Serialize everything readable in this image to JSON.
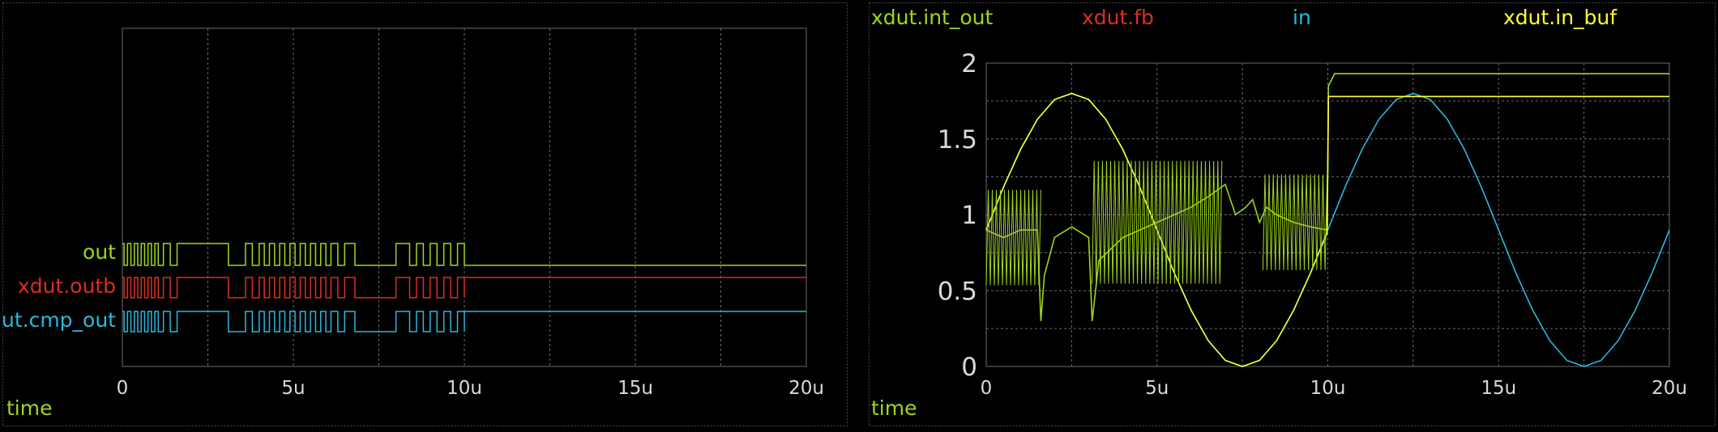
{
  "colors": {
    "background": "#000000",
    "border": "#4a4a4a",
    "grid": "#6b6b6b",
    "tick_label": "#d9d9d9",
    "green": "#9fd61b",
    "red": "#d9301e",
    "cyan": "#2ab8dc",
    "yellow": "#ffff30"
  },
  "chart_data": [
    {
      "type": "line",
      "subtype": "digital",
      "xlabel": "time",
      "xlim": [
        0,
        20
      ],
      "x_unit": "u",
      "x_ticks": [
        "0",
        "5u",
        "10u",
        "15u",
        "20u"
      ],
      "grid": true,
      "traces": [
        {
          "name": "out",
          "color": "#9fd61b",
          "toggle_times": [
            0.05,
            0.15,
            0.25,
            0.35,
            0.45,
            0.55,
            0.65,
            0.75,
            0.85,
            0.95,
            1.05,
            1.2,
            1.4,
            1.6,
            3.1,
            3.6,
            3.8,
            4.0,
            4.15,
            4.3,
            4.45,
            4.6,
            4.75,
            4.9,
            5.05,
            5.2,
            5.35,
            5.5,
            5.65,
            5.8,
            5.95,
            6.1,
            6.3,
            6.5,
            6.8,
            8.0,
            8.4,
            8.6,
            8.8,
            9.0,
            9.2,
            9.4,
            9.6,
            9.8,
            10.0
          ]
        },
        {
          "name": "xdut.outb",
          "color": "#d9301e",
          "toggle_times": [
            0.05,
            0.15,
            0.25,
            0.35,
            0.45,
            0.55,
            0.65,
            0.75,
            0.85,
            0.95,
            1.05,
            1.2,
            1.4,
            1.6,
            3.1,
            3.6,
            3.8,
            4.0,
            4.15,
            4.3,
            4.45,
            4.6,
            4.75,
            4.9,
            5.05,
            5.2,
            5.35,
            5.5,
            5.65,
            5.8,
            5.95,
            6.1,
            6.3,
            6.5,
            6.8,
            8.0,
            8.4,
            8.6,
            8.8,
            9.0,
            9.2,
            9.4,
            9.6,
            9.8,
            10.0
          ]
        },
        {
          "name": "ut.cmp_out",
          "color": "#2ab8dc",
          "toggle_times": [
            0.05,
            0.15,
            0.25,
            0.35,
            0.45,
            0.55,
            0.65,
            0.75,
            0.85,
            0.95,
            1.05,
            1.2,
            1.4,
            1.6,
            3.1,
            3.6,
            3.8,
            4.0,
            4.15,
            4.3,
            4.45,
            4.6,
            4.75,
            4.9,
            5.05,
            5.2,
            5.35,
            5.5,
            5.65,
            5.8,
            5.95,
            6.1,
            6.3,
            6.5,
            6.8,
            8.0,
            8.4,
            8.6,
            8.8,
            9.0,
            9.2,
            9.4,
            9.6,
            9.8,
            10.0
          ]
        }
      ]
    },
    {
      "type": "line",
      "subtype": "analog",
      "xlabel": "time",
      "xlim": [
        0,
        20
      ],
      "ylim": [
        0,
        2
      ],
      "x_unit": "u",
      "x_ticks": [
        "0",
        "5u",
        "10u",
        "15u",
        "20u"
      ],
      "y_ticks": [
        "0",
        "0.5",
        "1",
        "1.5",
        "2"
      ],
      "grid": true,
      "legend": [
        "xdut.int_out",
        "xdut.fb",
        "in",
        "xdut.in_buf"
      ],
      "series": [
        {
          "name": "xdut.int_out",
          "color": "#9fd61b",
          "x": [
            0,
            0.5,
            1.0,
            1.5,
            1.6,
            1.7,
            2.0,
            2.5,
            3.0,
            3.1,
            3.3,
            4.0,
            5.0,
            6.0,
            6.5,
            7.0,
            7.3,
            7.6,
            7.8,
            8.0,
            8.2,
            8.5,
            9.0,
            9.5,
            9.98,
            10.02,
            10.2,
            20
          ],
          "y": [
            0.9,
            0.85,
            0.9,
            0.9,
            0.3,
            0.6,
            0.85,
            0.92,
            0.85,
            0.3,
            0.7,
            0.85,
            0.95,
            1.05,
            1.12,
            1.2,
            1.0,
            1.05,
            1.1,
            0.95,
            1.05,
            1.0,
            0.95,
            0.92,
            0.9,
            1.85,
            1.93,
            1.93
          ]
        },
        {
          "name": "xdut.fb",
          "color": "#d9301e",
          "x": [],
          "y": []
        },
        {
          "name": "in",
          "color": "#2ab8dc",
          "x": [
            0,
            0.5,
            1,
            1.5,
            2,
            2.5,
            3,
            3.5,
            4,
            4.5,
            5,
            5.5,
            6,
            6.5,
            7,
            7.5,
            8,
            8.5,
            9,
            9.5,
            10,
            10.5,
            11,
            11.5,
            12,
            12.5,
            13,
            13.5,
            14,
            14.5,
            15,
            15.5,
            16,
            16.5,
            17,
            17.5,
            18,
            18.5,
            19,
            19.5,
            20
          ],
          "y": [
            0.9,
            1.18,
            1.43,
            1.63,
            1.76,
            1.8,
            1.76,
            1.63,
            1.43,
            1.18,
            0.9,
            0.62,
            0.37,
            0.17,
            0.04,
            0.0,
            0.04,
            0.17,
            0.37,
            0.62,
            0.9,
            1.18,
            1.43,
            1.63,
            1.76,
            1.8,
            1.76,
            1.63,
            1.43,
            1.18,
            0.9,
            0.62,
            0.37,
            0.17,
            0.04,
            0.0,
            0.04,
            0.17,
            0.37,
            0.62,
            0.9
          ]
        },
        {
          "name": "xdut.in_buf",
          "color": "#ffff30",
          "x": [
            0,
            0.5,
            1,
            1.5,
            2,
            2.5,
            3,
            3.5,
            4,
            4.5,
            5,
            5.5,
            6,
            6.5,
            7,
            7.5,
            8,
            8.5,
            9,
            9.5,
            9.98,
            10.02,
            20
          ],
          "y": [
            0.9,
            1.18,
            1.43,
            1.63,
            1.76,
            1.8,
            1.76,
            1.63,
            1.43,
            1.18,
            0.9,
            0.62,
            0.37,
            0.17,
            0.04,
            0.0,
            0.04,
            0.17,
            0.37,
            0.62,
            0.88,
            1.78,
            1.78
          ]
        }
      ]
    }
  ]
}
